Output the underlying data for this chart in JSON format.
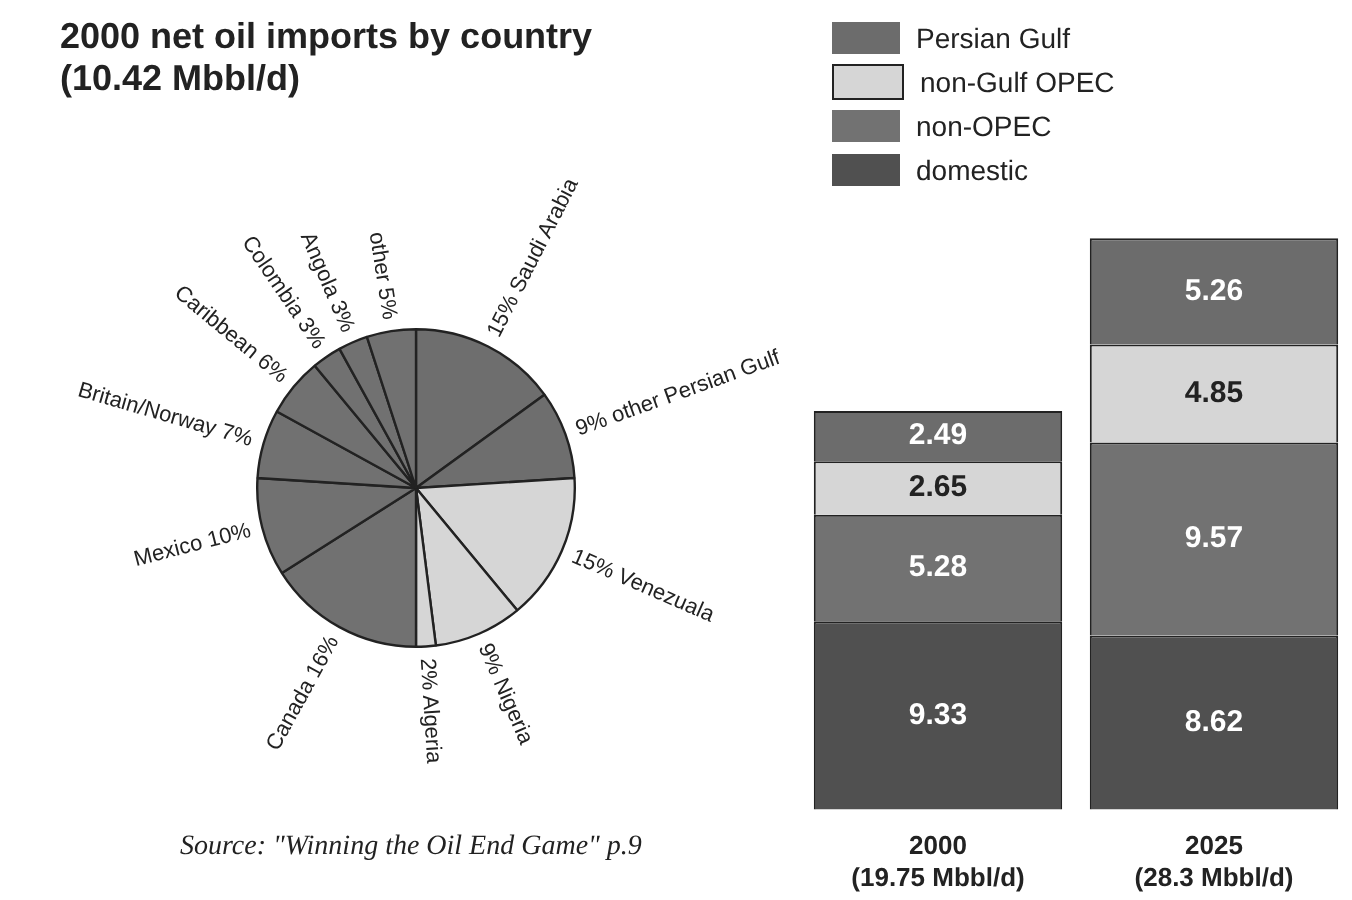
{
  "chart_data": [
    {
      "type": "pie",
      "title": "2000 net oil imports by country (10.42 Mbbl/d)",
      "categories": [
        "Saudi Arabia",
        "other Persian Gulf",
        "Venezuala",
        "Nigeria",
        "Algeria",
        "Canada",
        "Mexico",
        "Britain/Norway",
        "Caribbean",
        "Colombia",
        "Angola",
        "other"
      ],
      "values": [
        15,
        9,
        15,
        9,
        2,
        16,
        10,
        7,
        6,
        3,
        3,
        5
      ],
      "value_labels": [
        "15%",
        "9%",
        "15%",
        "9%",
        "2%",
        "16%",
        "10%",
        "7%",
        "6%",
        "3%",
        "3%",
        "5%"
      ],
      "colors": [
        "#6e6e6e",
        "#6e6e6e",
        "#d6d6d6",
        "#d6d6d6",
        "#d6d6d6",
        "#717171",
        "#717171",
        "#717171",
        "#717171",
        "#717171",
        "#717171",
        "#717171"
      ],
      "annotations": [
        "Source: \"Winning the Oil End Game\" p.9"
      ]
    },
    {
      "type": "bar",
      "categories": [
        "2000 (19.75 Mbbl/d)",
        "2025 (28.3 Mbbl/d)"
      ],
      "stacked": true,
      "data_labels": true,
      "legend": "top left",
      "series": [
        {
          "name": "domestic",
          "color": "#505050",
          "values": [
            9.33,
            8.62
          ]
        },
        {
          "name": "non-OPEC",
          "color": "#727272",
          "values": [
            5.28,
            9.57
          ]
        },
        {
          "name": "non-Gulf OPEC",
          "color": "#d6d6d6",
          "values": [
            2.65,
            4.85
          ]
        },
        {
          "name": "Persian Gulf",
          "color": "#6c6c6c",
          "values": [
            2.49,
            5.26
          ]
        }
      ]
    }
  ]
}
